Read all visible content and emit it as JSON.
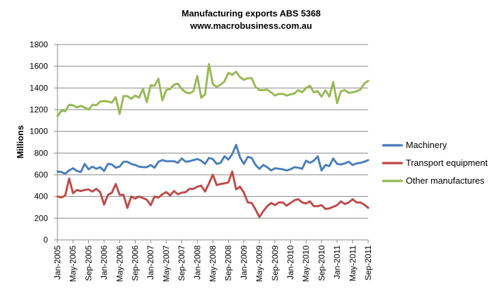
{
  "chart_data": {
    "type": "line",
    "title": "Manufacturing exports ABS 5368",
    "subtitle": "www.macrobusiness.com.au",
    "ylabel": "Millions",
    "xlabel": "",
    "ylim": [
      0,
      1800
    ],
    "yticks": [
      0,
      200,
      400,
      600,
      800,
      1000,
      1200,
      1400,
      1600,
      1800
    ],
    "grid": "horizontal",
    "legend_position": "right",
    "x_tick_labels": [
      "Jan-2005",
      "May-2005",
      "Sep-2005",
      "Jan-2006",
      "May-2006",
      "Sep-2006",
      "Jan-2007",
      "May-2007",
      "Sep-2007",
      "Jan-2008",
      "May-2008",
      "Sep-2008",
      "Jan-2009",
      "May-2009",
      "Sep-2009",
      "Jan-2010",
      "May-2010",
      "Sep-2010",
      "Jan-2011",
      "May-2011",
      "Sep-2011"
    ],
    "x_start": "Jan-2005",
    "x_end": "Sep-2011",
    "series": [
      {
        "name": "Machinery",
        "color": "#4a7ebb",
        "values": [
          630,
          625,
          610,
          640,
          660,
          635,
          625,
          700,
          650,
          675,
          655,
          670,
          635,
          700,
          695,
          665,
          675,
          720,
          720,
          700,
          690,
          675,
          670,
          670,
          690,
          665,
          720,
          735,
          725,
          725,
          725,
          710,
          750,
          720,
          725,
          735,
          745,
          730,
          700,
          755,
          745,
          700,
          710,
          770,
          740,
          790,
          875,
          760,
          700,
          765,
          755,
          690,
          655,
          690,
          670,
          640,
          660,
          655,
          650,
          640,
          650,
          670,
          665,
          655,
          730,
          710,
          730,
          770,
          640,
          690,
          680,
          750,
          700,
          695,
          705,
          720,
          690,
          705,
          710,
          720,
          735
        ]
      },
      {
        "name": "Transport equipment",
        "color": "#be4b48",
        "values": [
          400,
          390,
          410,
          565,
          430,
          460,
          450,
          460,
          465,
          445,
          470,
          440,
          325,
          415,
          435,
          515,
          415,
          415,
          295,
          400,
          380,
          400,
          385,
          370,
          320,
          400,
          390,
          420,
          440,
          410,
          450,
          420,
          435,
          440,
          470,
          470,
          490,
          500,
          445,
          520,
          600,
          505,
          515,
          520,
          530,
          630,
          465,
          490,
          435,
          345,
          340,
          280,
          210,
          265,
          310,
          340,
          320,
          345,
          345,
          315,
          340,
          365,
          375,
          345,
          335,
          355,
          310,
          310,
          320,
          285,
          290,
          305,
          320,
          355,
          330,
          345,
          375,
          345,
          345,
          325,
          295
        ]
      },
      {
        "name": "Other manufactures",
        "color": "#98b954",
        "values": [
          1140,
          1190,
          1185,
          1245,
          1240,
          1220,
          1235,
          1220,
          1200,
          1245,
          1240,
          1275,
          1280,
          1275,
          1265,
          1315,
          1160,
          1325,
          1325,
          1300,
          1330,
          1310,
          1390,
          1270,
          1425,
          1420,
          1485,
          1285,
          1380,
          1390,
          1430,
          1440,
          1390,
          1360,
          1350,
          1370,
          1510,
          1310,
          1340,
          1620,
          1435,
          1410,
          1430,
          1460,
          1540,
          1520,
          1550,
          1500,
          1475,
          1490,
          1490,
          1410,
          1380,
          1380,
          1385,
          1360,
          1330,
          1345,
          1345,
          1330,
          1340,
          1350,
          1380,
          1360,
          1400,
          1420,
          1360,
          1370,
          1320,
          1380,
          1320,
          1455,
          1260,
          1370,
          1380,
          1355,
          1360,
          1370,
          1385,
          1440,
          1465
        ]
      }
    ]
  }
}
